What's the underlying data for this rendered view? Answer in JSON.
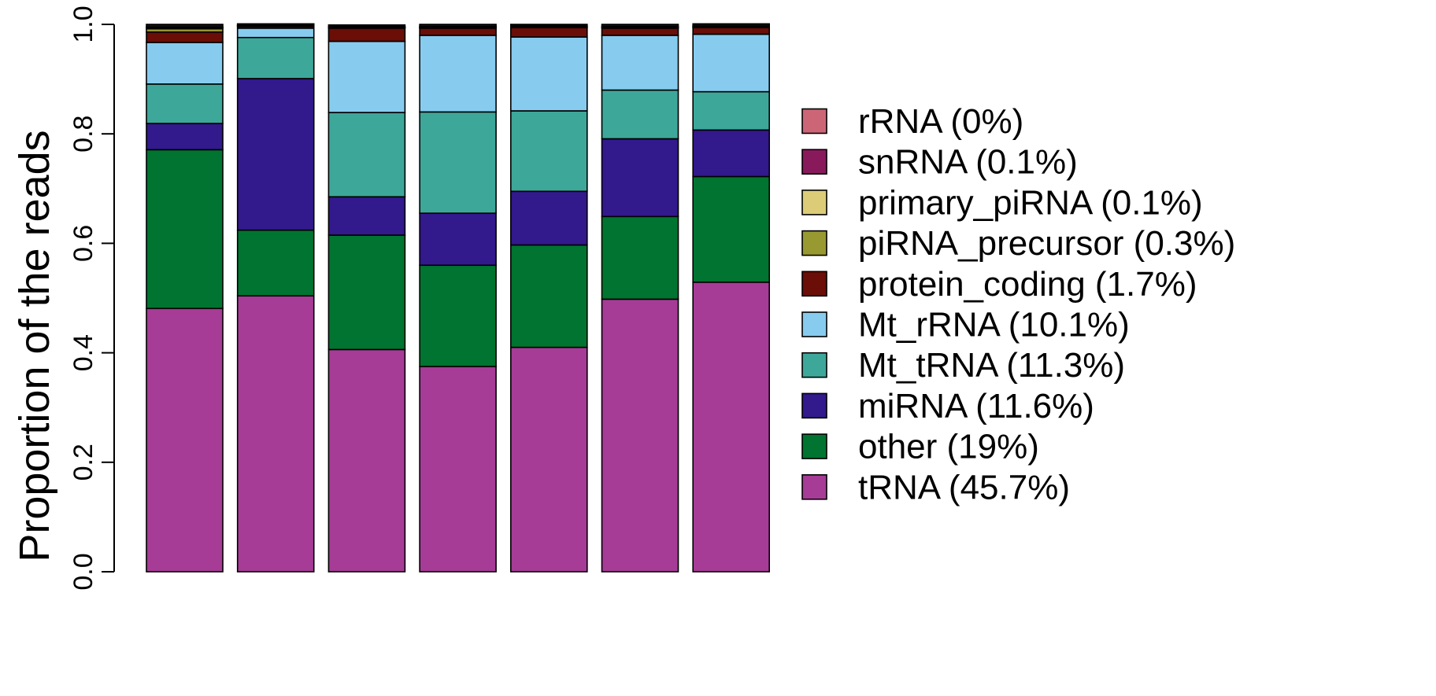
{
  "chart_data": {
    "type": "bar",
    "stacked": true,
    "categories": [
      "",
      "",
      "",
      "",
      "",
      "",
      ""
    ],
    "ylabel": "Proportion of the reads",
    "xlabel": "",
    "ylim": [
      0,
      1
    ],
    "yticks": [
      "0.0",
      "0.2",
      "0.4",
      "0.6",
      "0.8",
      "1.0"
    ],
    "legend_position": "right",
    "series": [
      {
        "name": "tRNA (45.7%)",
        "color": "#A63C96",
        "values": [
          0.481,
          0.504,
          0.406,
          0.375,
          0.41,
          0.498,
          0.529
        ]
      },
      {
        "name": "other (19%)",
        "color": "#007430",
        "values": [
          0.29,
          0.12,
          0.209,
          0.185,
          0.187,
          0.151,
          0.193
        ]
      },
      {
        "name": "miRNA (11.6%)",
        "color": "#32198C",
        "values": [
          0.048,
          0.277,
          0.07,
          0.095,
          0.098,
          0.142,
          0.085
        ]
      },
      {
        "name": "Mt_tRNA (11.3%)",
        "color": "#3DA79A",
        "values": [
          0.072,
          0.075,
          0.154,
          0.185,
          0.147,
          0.089,
          0.07
        ]
      },
      {
        "name": "Mt_rRNA (10.1%)",
        "color": "#87CCEF",
        "values": [
          0.076,
          0.017,
          0.13,
          0.14,
          0.135,
          0.1,
          0.105
        ]
      },
      {
        "name": "protein_coding (1.7%)",
        "color": "#6A0E07",
        "values": [
          0.019,
          0.003,
          0.024,
          0.013,
          0.017,
          0.013,
          0.012
        ]
      },
      {
        "name": "piRNA_precursor (0.3%)",
        "color": "#999932",
        "values": [
          0.006,
          0.001,
          0.001,
          0.001,
          0.001,
          0.001,
          0.001
        ]
      },
      {
        "name": "primary_piRNA (0.1%)",
        "color": "#DDCC77",
        "values": [
          0.002,
          0.001,
          0.001,
          0.001,
          0.001,
          0.001,
          0.001
        ]
      },
      {
        "name": "snRNA (0.1%)",
        "color": "#881A5C",
        "values": [
          0.001,
          0.001,
          0.001,
          0.001,
          0.001,
          0.001,
          0.001
        ]
      },
      {
        "name": "rRNA (0%)",
        "color": "#CC6677",
        "values": [
          0.0,
          0.0,
          0.0,
          0.0,
          0.0,
          0.0,
          0.0
        ]
      },
      {
        "name": "",
        "color": "#111111",
        "values": [
          0.005,
          0.002,
          0.003,
          0.004,
          0.003,
          0.004,
          0.004
        ]
      }
    ],
    "legend_order": [
      "rRNA (0%)",
      "snRNA (0.1%)",
      "primary_piRNA (0.1%)",
      "piRNA_precursor (0.3%)",
      "protein_coding (1.7%)",
      "Mt_rRNA (10.1%)",
      "Mt_tRNA (11.3%)",
      "miRNA (11.6%)",
      "other (19%)",
      "tRNA (45.7%)"
    ]
  }
}
